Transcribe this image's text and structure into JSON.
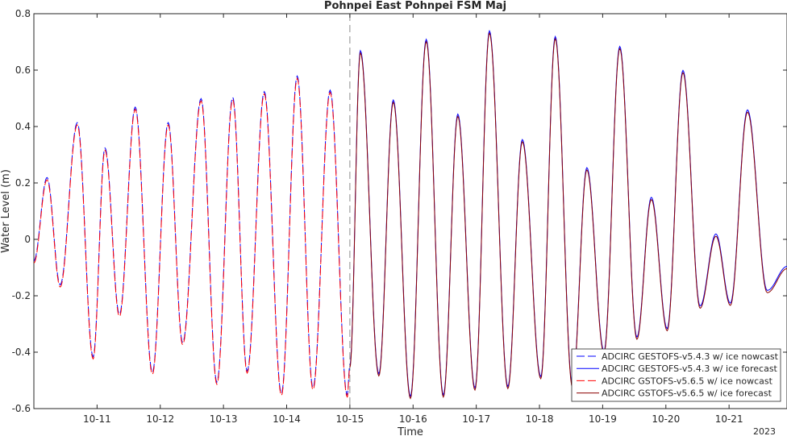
{
  "chart_data": {
    "type": "line",
    "title": "Pohnpei East Pohnpei FSM Maj",
    "xlabel": "Time",
    "ylabel": "Water Level (m)",
    "year_label": "2023",
    "x_unit": "day",
    "xlim": [
      "2023-10-10 00:00",
      "2023-10-21 22:00"
    ],
    "ylim": [
      -0.6,
      0.8
    ],
    "yticks": [
      -0.6,
      -0.4,
      -0.2,
      0,
      0.2,
      0.4,
      0.6,
      0.8
    ],
    "ytick_labels": [
      "-0.6",
      "-0.4",
      "-0.2",
      "0",
      "0.2",
      "0.4",
      "0.6",
      "0.8"
    ],
    "xticks": [
      "2023-10-11",
      "2023-10-12",
      "2023-10-13",
      "2023-10-14",
      "2023-10-15",
      "2023-10-16",
      "2023-10-17",
      "2023-10-18",
      "2023-10-19",
      "2023-10-20",
      "2023-10-21"
    ],
    "xtick_labels": [
      "10-11",
      "10-12",
      "10-13",
      "10-14",
      "10-15",
      "10-16",
      "10-17",
      "10-18",
      "10-19",
      "10-20",
      "10-21"
    ],
    "forecast_start": "2023-10-15 00:00",
    "grid": false,
    "legend_position": "bottom-right",
    "nowcast_extrema": [
      [
        "2023-10-10 00:00",
        -0.08
      ],
      [
        "2023-10-10 05:00",
        0.215
      ],
      [
        "2023-10-10 10:00",
        -0.165
      ],
      [
        "2023-10-10 16:30",
        0.41
      ],
      [
        "2023-10-10 22:30",
        -0.42
      ],
      [
        "2023-10-11 03:00",
        0.32
      ],
      [
        "2023-10-11 08:30",
        -0.27
      ],
      [
        "2023-10-11 14:30",
        0.465
      ],
      [
        "2023-10-11 21:00",
        -0.475
      ],
      [
        "2023-10-12 03:00",
        0.41
      ],
      [
        "2023-10-12 08:30",
        -0.37
      ],
      [
        "2023-10-12 15:30",
        0.495
      ],
      [
        "2023-10-12 21:30",
        -0.51
      ],
      [
        "2023-10-13 03:30",
        0.5
      ],
      [
        "2023-10-13 09:00",
        -0.47
      ],
      [
        "2023-10-13 15:30",
        0.52
      ],
      [
        "2023-10-13 22:00",
        -0.55
      ],
      [
        "2023-10-14 04:00",
        0.575
      ],
      [
        "2023-10-14 10:00",
        -0.53
      ],
      [
        "2023-10-14 16:30",
        0.525
      ],
      [
        "2023-10-14 23:00",
        -0.555
      ],
      [
        "2023-10-15 00:00",
        -0.45
      ]
    ],
    "forecast_extrema": [
      [
        "2023-10-15 00:00",
        -0.45
      ],
      [
        "2023-10-15 04:00",
        0.665
      ],
      [
        "2023-10-15 11:00",
        -0.48
      ],
      [
        "2023-10-15 16:30",
        0.49
      ],
      [
        "2023-10-15 23:00",
        -0.56
      ],
      [
        "2023-10-16 05:00",
        0.705
      ],
      [
        "2023-10-16 11:30",
        -0.555
      ],
      [
        "2023-10-16 17:00",
        0.44
      ],
      [
        "2023-10-16 23:30",
        -0.53
      ],
      [
        "2023-10-17 05:00",
        0.735
      ],
      [
        "2023-10-17 12:00",
        -0.525
      ],
      [
        "2023-10-17 17:30",
        0.35
      ],
      [
        "2023-10-18 00:30",
        -0.49
      ],
      [
        "2023-10-18 06:00",
        0.715
      ],
      [
        "2023-10-18 12:30",
        -0.52
      ],
      [
        "2023-10-18 18:00",
        0.25
      ],
      [
        "2023-10-19 00:30",
        -0.4
      ],
      [
        "2023-10-19 06:30",
        0.68
      ],
      [
        "2023-10-19 13:00",
        -0.35
      ],
      [
        "2023-10-19 18:30",
        0.145
      ],
      [
        "2023-10-20 00:30",
        -0.32
      ],
      [
        "2023-10-20 06:30",
        0.595
      ],
      [
        "2023-10-20 13:00",
        -0.24
      ],
      [
        "2023-10-20 19:00",
        0.015
      ],
      [
        "2023-10-21 00:30",
        -0.23
      ],
      [
        "2023-10-21 07:00",
        0.455
      ],
      [
        "2023-10-21 14:30",
        -0.185
      ],
      [
        "2023-10-21 22:00",
        -0.1
      ]
    ],
    "series": [
      {
        "name": "ADCIRC GESTOFS-v5.4.3 w/ ice nowcast",
        "color": "#0000ff",
        "dash": "dashed",
        "source": "nowcast_extrema",
        "y_offset": 0.004
      },
      {
        "name": "ADCIRC GESTOFS-v5.4.3 w/ ice forecast",
        "color": "#0000ff",
        "dash": "solid",
        "source": "forecast_extrema",
        "y_offset": 0.004
      },
      {
        "name": "ADCIRC GSTOFS-v5.6.5 w/ ice nowcast",
        "color": "#ff0000",
        "dash": "dashed",
        "source": "nowcast_extrema",
        "y_offset": -0.004
      },
      {
        "name": "ADCIRC GSTOFS-v5.6.5 w/ ice forecast",
        "color": "#8b0000",
        "dash": "solid",
        "source": "forecast_extrema",
        "y_offset": -0.004
      }
    ]
  }
}
